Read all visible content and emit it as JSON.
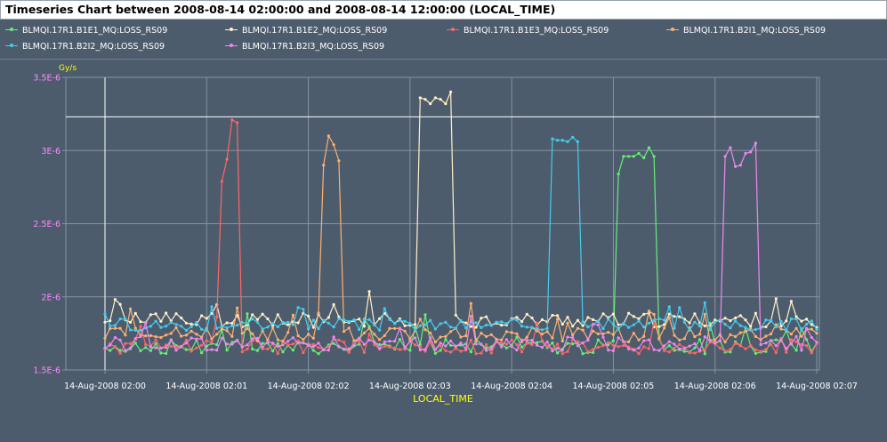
{
  "title": "Timeseries Chart between 2008-08-14 02:00:00 and 2008-08-14 12:00:00 (LOCAL_TIME)",
  "colors": {
    "background": "#4d5c6d",
    "grid": "#8592a0",
    "marker_line": "#ffffff",
    "y_ticks": "#ff88ff",
    "x_ticks": "#ffffff",
    "x_label": "#ffff00",
    "y_unit": "#ffff00"
  },
  "chart_data": {
    "type": "line",
    "title": "Timeseries Chart between 2008-08-14 02:00:00 and 2008-08-14 12:00:00 (LOCAL_TIME)",
    "xlabel": "LOCAL_TIME",
    "ylabel": "Gy/s",
    "ylim": [
      1.5e-06,
      3.5e-06
    ],
    "xlim": [
      0,
      420
    ],
    "x_unit": "seconds after 14-Aug-2008 02:00:00",
    "y_ticks": [
      {
        "value": 1.5e-06,
        "label": "1.5E-6"
      },
      {
        "value": 2e-06,
        "label": "2E-6"
      },
      {
        "value": 2.5e-06,
        "label": "2.5E-6"
      },
      {
        "value": 3e-06,
        "label": "3E-6"
      },
      {
        "value": 3.5e-06,
        "label": "3.5E-6"
      }
    ],
    "x_ticks": [
      {
        "value": 0,
        "label": "14-Aug-2008 02:00"
      },
      {
        "value": 60,
        "label": "14-Aug-2008 02:01"
      },
      {
        "value": 120,
        "label": "14-Aug-2008 02:02"
      },
      {
        "value": 180,
        "label": "14-Aug-2008 02:03"
      },
      {
        "value": 240,
        "label": "14-Aug-2008 02:04"
      },
      {
        "value": 300,
        "label": "14-Aug-2008 02:05"
      },
      {
        "value": 360,
        "label": "14-Aug-2008 02:06"
      },
      {
        "value": 420,
        "label": "14-Aug-2008 02:07"
      }
    ],
    "grid": true,
    "legend": "top",
    "marker_lines": {
      "vertical_x": 0,
      "horizontal_y": 3.23e-06
    },
    "series": [
      {
        "name": "BLMQI.17R1.B1E1_MQ:LOSS_RS09",
        "color": "#66ee77",
        "baseline": 1.66e-06,
        "noise": 5e-08,
        "peaks": [
          {
            "x0": 303,
            "x1": 326,
            "values": [
              2.84e-06,
              2.96e-06,
              2.95e-06,
              2.96e-06,
              3.02e-06,
              2.96e-06,
              2.98e-06,
              3.02e-06,
              2.95e-06,
              3e-06,
              3.02e-06,
              2.96e-06,
              3.02e-06
            ]
          }
        ]
      },
      {
        "name": "BLMQI.17R1.B1E2_MQ:LOSS_RS09",
        "color": "#fff0c8",
        "baseline": 1.84e-06,
        "noise": 5e-08,
        "peaks": [
          {
            "x0": 184,
            "x1": 206,
            "values": [
              3.37e-06,
              3.36e-06,
              3.35e-06,
              3.43e-06,
              3.32e-06,
              3.36e-06,
              3.42e-06,
              3.35e-06,
              3.37e-06,
              3.32e-06,
              3.4e-06,
              3.35e-06
            ]
          }
        ]
      },
      {
        "name": "BLMQI.17R1.B1E3_MQ:LOSS_RS09",
        "color": "#ff6666",
        "baseline": 1.66e-06,
        "noise": 5e-08,
        "peaks": [
          {
            "x0": 68,
            "x1": 80,
            "values": [
              2.79e-06,
              3.01e-06,
              2.94e-06,
              3.04e-06,
              3.07e-06,
              3.21e-06,
              3.15e-06,
              3.19e-06,
              3.05e-06
            ]
          }
        ]
      },
      {
        "name": "BLMQI.17R1.B2I1_MQ:LOSS_RS09",
        "color": "#ffb070",
        "baseline": 1.74e-06,
        "noise": 5e-08,
        "peaks": [
          {
            "x0": 128,
            "x1": 139,
            "values": [
              2.9e-06,
              3.05e-06,
              2.93e-06,
              3.1e-06,
              3.07e-06,
              3.04e-06,
              2.95e-06,
              3.07e-06,
              2.93e-06
            ]
          }
        ]
      },
      {
        "name": "BLMQI.17R1.B2I2_MQ:LOSS_RS09",
        "color": "#44ccee",
        "baseline": 1.81e-06,
        "noise": 4e-08,
        "peaks": [
          {
            "x0": 262,
            "x1": 280,
            "values": [
              3.09e-06,
              3.08e-06,
              3.07e-06,
              3.1e-06,
              3.07e-06,
              3.11e-06,
              3.06e-06,
              3.09e-06,
              3.07e-06,
              3.06e-06
            ]
          }
        ]
      },
      {
        "name": "BLMQI.17R1.B2I3_MQ:LOSS_RS09",
        "color": "#ee88ee",
        "baseline": 1.68e-06,
        "noise": 5e-08,
        "peaks": [
          {
            "x0": 364,
            "x1": 386,
            "values": [
              3e-06,
              2.96e-06,
              3.02e-06,
              2.89e-06,
              2.89e-06,
              2.9e-06,
              2.95e-06,
              2.98e-06,
              2.96e-06,
              2.99e-06,
              3.05e-06,
              2.94e-06
            ]
          }
        ]
      }
    ]
  }
}
